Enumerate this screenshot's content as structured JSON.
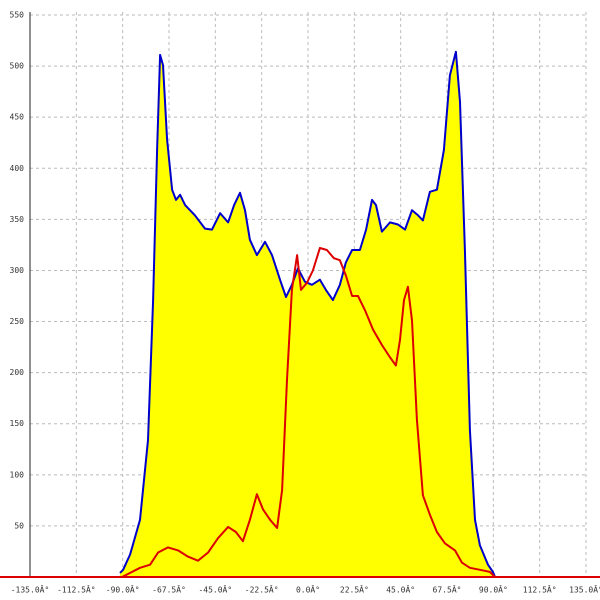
{
  "chart_data": {
    "type": "area",
    "xlim": [
      -135,
      135
    ],
    "ylim": [
      0,
      550
    ],
    "xticks": [
      {
        "value": -135,
        "label": "-135.0Â°"
      },
      {
        "value": -112.5,
        "label": "-112.5Â°"
      },
      {
        "value": -90,
        "label": "-90.0Â°"
      },
      {
        "value": -67.5,
        "label": "-67.5Â°"
      },
      {
        "value": -45,
        "label": "-45.0Â°"
      },
      {
        "value": -22.5,
        "label": "-22.5Â°"
      },
      {
        "value": 0,
        "label": "0.0Â°"
      },
      {
        "value": 22.5,
        "label": "22.5Â°"
      },
      {
        "value": 45,
        "label": "45.0Â°"
      },
      {
        "value": 67.5,
        "label": "67.5Â°"
      },
      {
        "value": 90,
        "label": "90.0Â°"
      },
      {
        "value": 112.5,
        "label": "112.5Â°"
      },
      {
        "value": 135,
        "label": "135.0Â°"
      }
    ],
    "yticks": [
      50,
      100,
      150,
      200,
      250,
      300,
      350,
      400,
      450,
      500,
      550
    ],
    "grid": true,
    "series": [
      {
        "color": "#0000cc",
        "fill": "#ffff00",
        "x": [
          -91.3,
          -89.8,
          -86.4,
          -81.6,
          -77.7,
          -75.2,
          -73.3,
          -71.8,
          -70.4,
          -68.4,
          -66,
          -64.1,
          -62.1,
          -59.7,
          -54.9,
          -50,
          -46.6,
          -42.7,
          -38.8,
          -35.9,
          -33,
          -30.6,
          -28.2,
          -24.8,
          -20.9,
          -17.5,
          -13.6,
          -10.7,
          -7.8,
          -4.9,
          -1.5,
          1.9,
          5.8,
          8.7,
          12.1,
          15.5,
          18.4,
          21.4,
          25.2,
          28.2,
          31.1,
          33,
          35.9,
          39.8,
          43.7,
          47.1,
          50.5,
          53.4,
          55.8,
          59.2,
          62.6,
          66,
          68.9,
          71.8,
          73.8,
          76.2,
          78.6,
          81.1,
          83.5,
          87.4,
          89.8,
          90.8
        ],
        "values": [
          4,
          7,
          22,
          56,
          134,
          271,
          418,
          511,
          501,
          428,
          379,
          369,
          374,
          364,
          354,
          341,
          340,
          356,
          347,
          364,
          376,
          359,
          330,
          315,
          328,
          315,
          291,
          274,
          286,
          302,
          289,
          286,
          291,
          281,
          271,
          286,
          308,
          320,
          320,
          340,
          369,
          364,
          338,
          347,
          345,
          340,
          359,
          354,
          349,
          377,
          379,
          418,
          491,
          514,
          465,
          320,
          144,
          56,
          31,
          12,
          5,
          0
        ]
      },
      {
        "color": "#dd0000",
        "x": [
          -90.3,
          -86.4,
          -81.6,
          -76.7,
          -72.8,
          -68,
          -63.1,
          -58.3,
          -53.4,
          -48.5,
          -43.7,
          -38.8,
          -35,
          -31.6,
          -28.2,
          -24.8,
          -21.8,
          -18.4,
          -15,
          -12.6,
          -10.2,
          -7.8,
          -5.3,
          -3.4,
          -0.5,
          2.4,
          5.8,
          9.2,
          12.6,
          15.5,
          18.4,
          21.4,
          24.3,
          27.7,
          31.6,
          35.9,
          39.8,
          42.7,
          44.7,
          46.6,
          48.5,
          50.5,
          52.9,
          55.8,
          59.2,
          62.6,
          66.5,
          71.4,
          74.8,
          78.6,
          83.5,
          88.3,
          90.8
        ],
        "values": [
          0,
          4,
          9,
          12,
          24,
          29,
          26,
          20,
          16,
          24,
          38,
          49,
          44,
          35,
          56,
          81,
          66,
          56,
          48,
          85,
          193,
          281,
          315,
          281,
          288,
          300,
          322,
          320,
          312,
          310,
          295,
          275,
          275,
          261,
          242,
          227,
          215,
          207,
          232,
          271,
          284,
          251,
          154,
          80,
          61,
          44,
          33,
          26,
          14,
          9,
          7,
          5,
          0
        ]
      }
    ]
  }
}
